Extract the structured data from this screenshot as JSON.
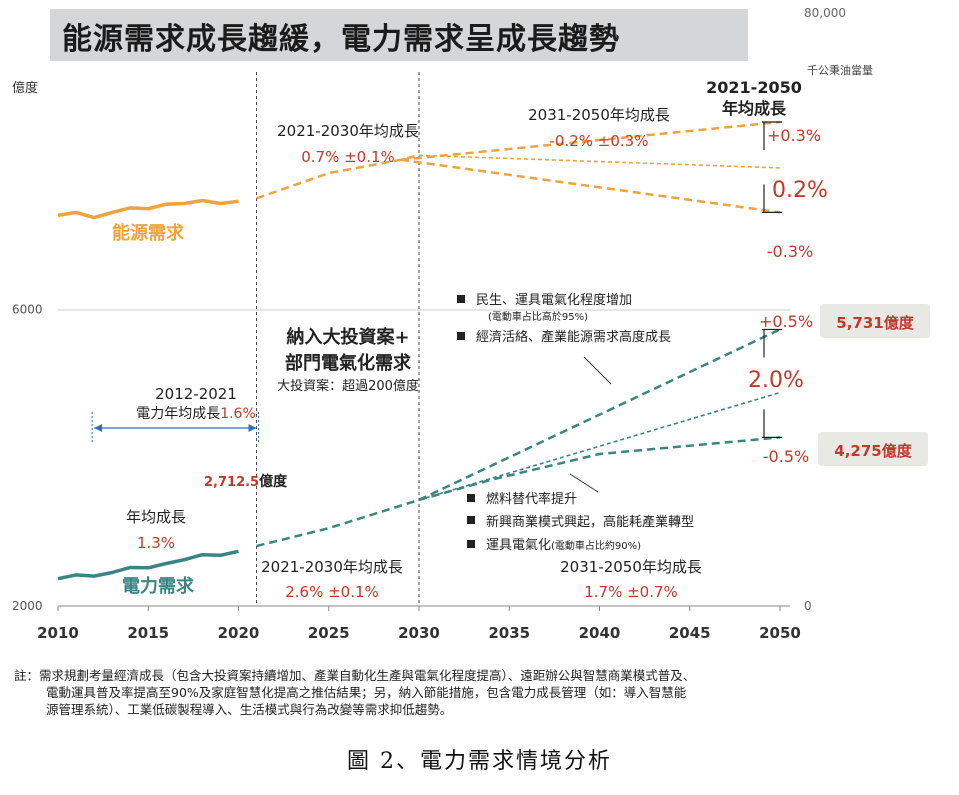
{
  "title": "能源需求成長趨緩，電力需求呈成長趨勢",
  "chart_data": {
    "type": "line",
    "x_ticks": [
      2010,
      2015,
      2020,
      2025,
      2030,
      2035,
      2040,
      2045,
      2050
    ],
    "left_axis": {
      "unit": "億度",
      "ticks": [
        {
          "label": "6000",
          "value": 6000
        },
        {
          "label": "2000",
          "value": 2000
        }
      ],
      "range": [
        2000,
        10000
      ]
    },
    "right_axis": {
      "unit": "千公秉油當量",
      "ticks": [
        {
          "label": "80,000",
          "value": 80000
        },
        {
          "label": "0",
          "value": 0
        }
      ],
      "range": [
        0,
        80000
      ]
    },
    "colors": {
      "energy": "#f0a23c",
      "power": "#3a8584",
      "red": "#c0392b",
      "blue": "#2f6fb8",
      "label_bg": "#ececE8"
    },
    "series": [
      {
        "name": "能源需求",
        "axis": "right",
        "history_x": [
          2010,
          2011,
          2012,
          2013,
          2014,
          2015,
          2016,
          2017,
          2018,
          2019,
          2020
        ],
        "history": [
          52700,
          53100,
          52400,
          53100,
          53700,
          53600,
          54200,
          54300,
          54700,
          54300,
          54600
        ],
        "projection_x": [
          2021,
          2025,
          2029,
          2030,
          2050
        ],
        "projection_central": [
          55000,
          58400,
          60200,
          60800,
          59100
        ],
        "projection_high": [
          55000,
          58400,
          60200,
          61200,
          65300
        ],
        "projection_low": [
          55000,
          58400,
          60200,
          60400,
          53100
        ]
      },
      {
        "name": "電力需求",
        "axis": "left",
        "history_x": [
          2010,
          2011,
          2012,
          2013,
          2014,
          2015,
          2016,
          2017,
          2018,
          2019,
          2020
        ],
        "history": [
          2368,
          2419,
          2404,
          2452,
          2519,
          2515,
          2573,
          2624,
          2692,
          2684,
          2738
        ],
        "projection_x": [
          2021,
          2025,
          2030
        ],
        "projection_central": [
          2810,
          3050,
          3432
        ],
        "projection_high_x": [
          2030,
          2050
        ],
        "projection_high": [
          3432,
          5731
        ],
        "projection_mid_x": [
          2030,
          2050
        ],
        "projection_mid": [
          3432,
          4880
        ],
        "projection_low_x": [
          2030,
          2034,
          2040,
          2050
        ],
        "projection_low": [
          3432,
          3702,
          4050,
          4275
        ]
      }
    ],
    "annotations": {
      "energy_label": "能源需求",
      "power_label": "電力需求",
      "e_2021_2030_title": "2021-2030年均成長",
      "e_2021_2030_value": "0.7% ±0.1%",
      "e_2031_2050_title": "2031-2050年均成長",
      "e_2031_2050_value": "-0.2% ±0.3%",
      "period_title_1": "2021-2050",
      "period_title_2": "年均成長",
      "e_high": "+0.3%",
      "e_central": "0.2%",
      "e_low": "-0.3%",
      "p_high": "+0.5%",
      "p_central": "2.0%",
      "p_low": "-0.5%",
      "p_high_value": "5,731億度",
      "p_low_value": "4,275億度",
      "invest_1": "納入大投資案+",
      "invest_2": "部門電氣化需求",
      "invest_3": "大投資案：超過200億度",
      "hist_title_1": "2012-2021",
      "hist_title_2": "電力年均成長",
      "hist_value": "1.6%",
      "p2021_value": "2,712.5",
      "p2021_unit": "億度",
      "avg_title": "年均成長",
      "avg_value": "1.3%",
      "p_2021_2030_title": "2021-2030年均成長",
      "p_2021_2030_value": "2.6% ±0.1%",
      "p_2031_2050_title": "2031-2050年均成長",
      "p_2031_2050_value": "1.7% ±0.7%",
      "bullets_up": [
        {
          "text": "民生、運具電氣化程度增加",
          "sub": "(電動車占比高於95%)"
        },
        {
          "text": "經濟活絡、產業能源需求高度成長",
          "sub": ""
        }
      ],
      "bullets_down": [
        {
          "text": "燃料替代率提升",
          "sub": ""
        },
        {
          "text": "新興商業模式興起，高能耗產業轉型",
          "sub": ""
        },
        {
          "text": "運具電氣化",
          "sub": "(電動車占比約90%)"
        }
      ]
    }
  },
  "note_lines": [
    "註：需求規劃考量經濟成長（包含大投資案持續增加、產業自動化生產與電氣化程度提高）、遠距辦公與智慧商業模式普及、",
    "電動運具普及率提高至90%及家庭智慧化提高之推估結果；另，納入節能措施，包含電力成長管理（如：導入智慧能",
    "源管理系統）、工業低碳製程導入、生活模式與行為改變等需求抑低趨勢。"
  ],
  "caption": "圖 2、電力需求情境分析"
}
